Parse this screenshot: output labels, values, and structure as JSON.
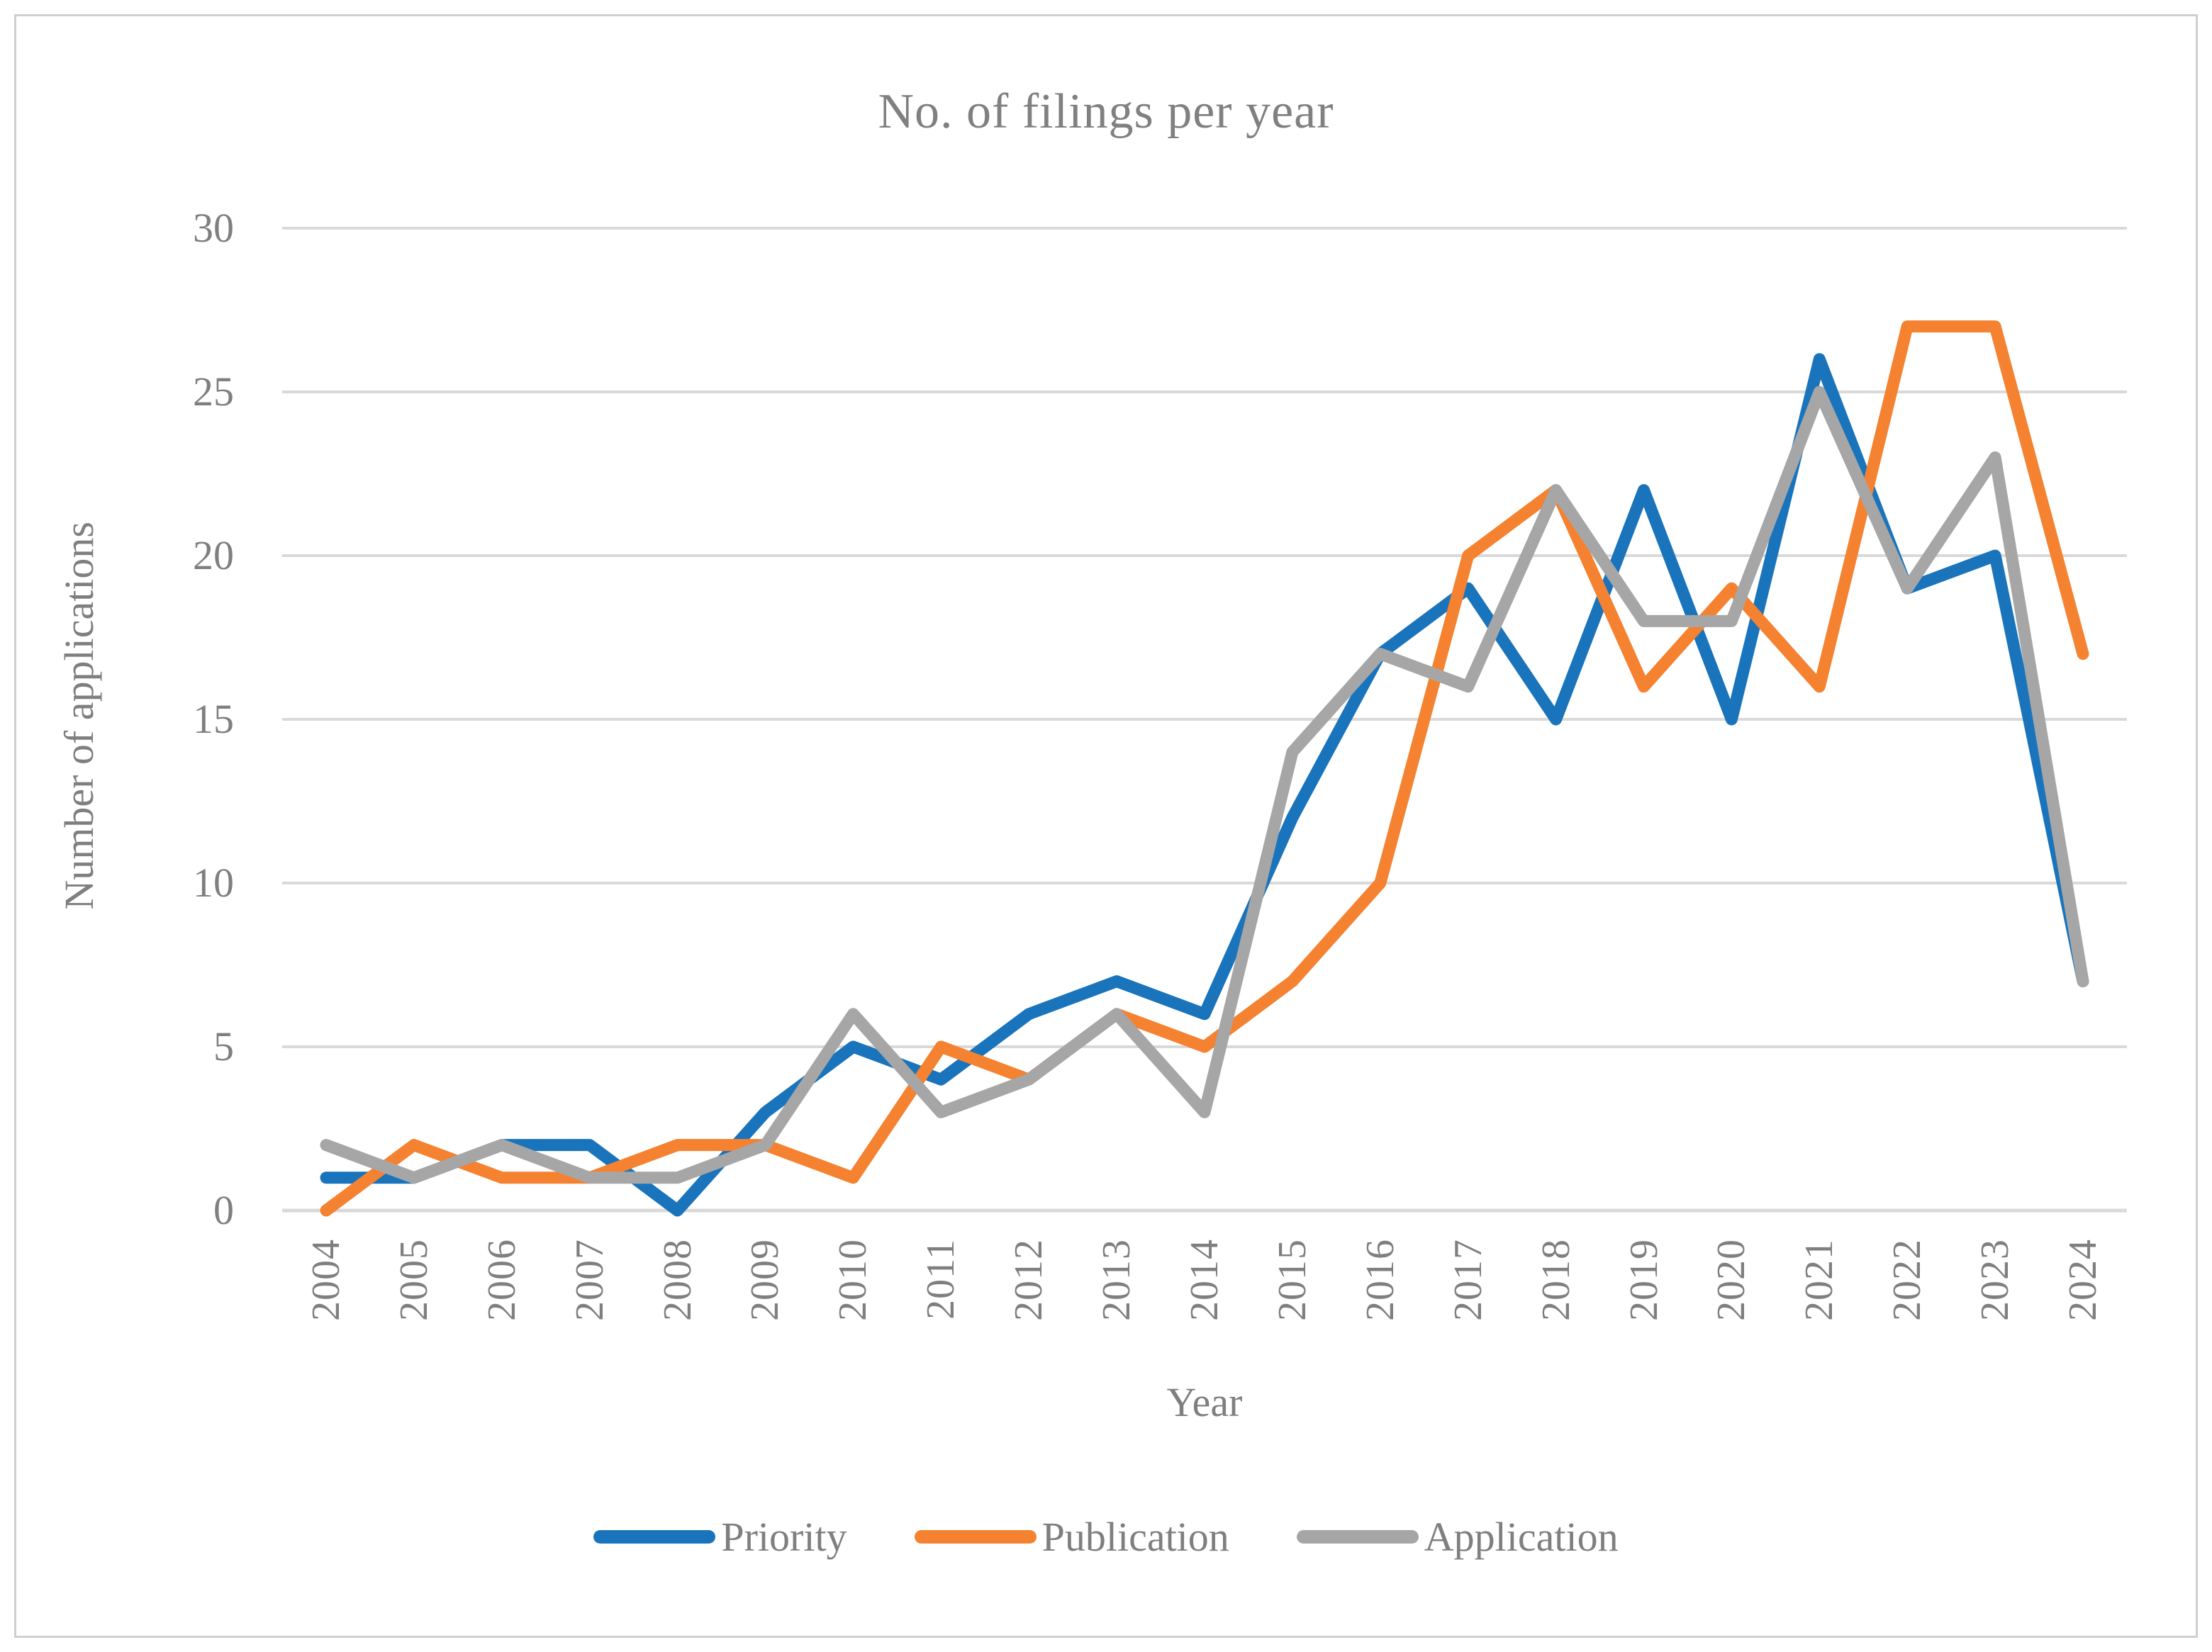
{
  "title": "No. of filings per year",
  "chart_data": {
    "type": "line",
    "title": "No. of filings per year",
    "xlabel": "Year",
    "ylabel": "Number of applications",
    "ylim": [
      0,
      30
    ],
    "y_ticks": [
      0,
      5,
      10,
      15,
      20,
      25,
      30
    ],
    "grid": true,
    "legend_position": "bottom",
    "categories": [
      "2004",
      "2005",
      "2006",
      "2007",
      "2008",
      "2009",
      "2010",
      "2011",
      "2012",
      "2013",
      "2014",
      "2015",
      "2016",
      "2017",
      "2018",
      "2019",
      "2020",
      "2021",
      "2022",
      "2023",
      "2024"
    ],
    "series": [
      {
        "name": "Priority",
        "color": "#1974bc",
        "values": [
          1,
          1,
          2,
          2,
          0,
          3,
          5,
          4,
          6,
          7,
          6,
          12,
          17,
          19,
          15,
          22,
          15,
          26,
          19,
          20,
          7
        ]
      },
      {
        "name": "Publication",
        "color": "#f58231",
        "values": [
          0,
          2,
          1,
          1,
          2,
          2,
          1,
          5,
          4,
          6,
          5,
          7,
          10,
          20,
          22,
          16,
          19,
          16,
          27,
          27,
          17
        ]
      },
      {
        "name": "Application",
        "color": "#a6a6a6",
        "values": [
          2,
          1,
          2,
          1,
          1,
          2,
          6,
          3,
          4,
          6,
          3,
          14,
          17,
          16,
          22,
          18,
          18,
          25,
          19,
          23,
          7
        ]
      }
    ],
    "colors": {
      "gridline": "#d9d9d9",
      "axis_text": "#7f7f7f",
      "title_text": "#808080"
    },
    "line_width": 17
  }
}
